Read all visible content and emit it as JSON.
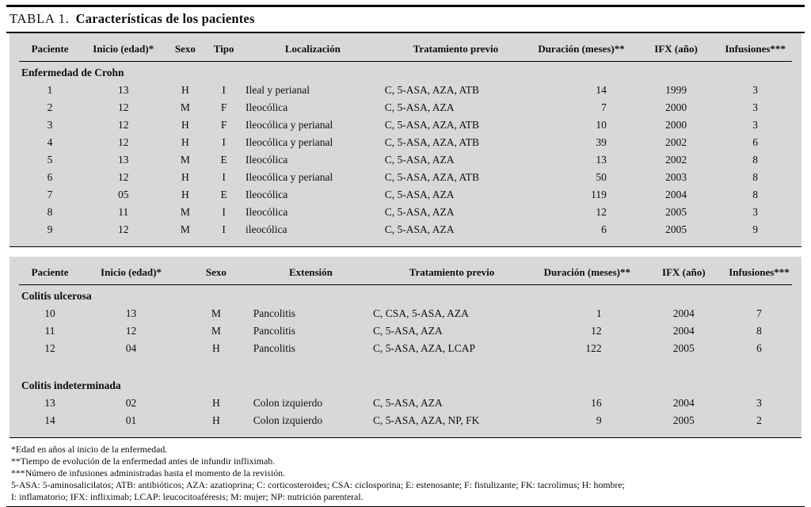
{
  "title": {
    "prefix": "TABLA 1.",
    "main": "Características de los pacientes"
  },
  "tables": [
    {
      "columns": [
        "Paciente",
        "Inicio (edad)*",
        "Sexo",
        "Tipo",
        "Localización",
        "Tratamiento previo",
        "Duración (meses)**",
        "IFX (año)",
        "Infusiones***"
      ],
      "sections": [
        {
          "label": "Enfermedad de Crohn",
          "rows": [
            [
              "1",
              "13",
              "H",
              "I",
              "Ileal y perianal",
              "C, 5-ASA, AZA, ATB",
              "14",
              "1999",
              "3"
            ],
            [
              "2",
              "12",
              "M",
              "F",
              "Ileocólica",
              "C, 5-ASA, AZA",
              "7",
              "2000",
              "3"
            ],
            [
              "3",
              "12",
              "H",
              "F",
              "Ileocólica y perianal",
              "C, 5-ASA, AZA, ATB",
              "10",
              "2000",
              "3"
            ],
            [
              "4",
              "12",
              "H",
              "I",
              "Ileocólica y perianal",
              "C, 5-ASA, AZA, ATB",
              "39",
              "2002",
              "6"
            ],
            [
              "5",
              "13",
              "M",
              "E",
              "Ileocólica",
              "C, 5-ASA, AZA",
              "13",
              "2002",
              "8"
            ],
            [
              "6",
              "12",
              "H",
              "I",
              "Ileocólica y perianal",
              "C, 5-ASA, AZA, ATB",
              "50",
              "2003",
              "8"
            ],
            [
              "7",
              "05",
              "H",
              "E",
              "Ileocólica",
              "C, 5-ASA, AZA",
              "119",
              "2004",
              "8"
            ],
            [
              "8",
              "11",
              "M",
              "I",
              "Ileocólica",
              "C, 5-ASA, AZA",
              "12",
              "2005",
              "3"
            ],
            [
              "9",
              "12",
              "M",
              "I",
              "ileocólica",
              "C, 5-ASA, AZA",
              "6",
              "2005",
              "9"
            ]
          ]
        }
      ]
    },
    {
      "columns": [
        "Paciente",
        "Inicio (edad)*",
        "Sexo",
        "Extensión",
        "Tratamiento previo",
        "Duración (meses)**",
        "IFX (año)",
        "Infusiones***"
      ],
      "sections": [
        {
          "label": "Colitis ulcerosa",
          "rows": [
            [
              "10",
              "13",
              "M",
              "Pancolitis",
              "C, CSA, 5-ASA, AZA",
              "1",
              "2004",
              "7"
            ],
            [
              "11",
              "12",
              "M",
              "Pancolitis",
              "C, 5-ASA, AZA",
              "12",
              "2004",
              "8"
            ],
            [
              "12",
              "04",
              "H",
              "Pancolitis",
              "C, 5-ASA, AZA, LCAP",
              "122",
              "2005",
              "6"
            ]
          ]
        },
        {
          "label": "Colitis indeterminada",
          "rows": [
            [
              "13",
              "02",
              "H",
              "Colon izquierdo",
              "C, 5-ASA, AZA",
              "16",
              "2004",
              "3"
            ],
            [
              "14",
              "01",
              "H",
              "Colon izquierdo",
              "C, 5-ASA, AZA, NP, FK",
              "9",
              "2005",
              "2"
            ]
          ]
        }
      ]
    }
  ],
  "footnotes": [
    "*Edad en años al inicio de la enfermedad.",
    "**Tiempo de evolución de la enfermedad antes de infundir infliximab.",
    "***Número de infusiones administradas hasta el momento de la revisión.",
    "5-ASA: 5-aminosalicilatos; ATB: antibióticos; AZA: azatioprina; C: corticosteroides; CSA: ciclosporina; E: estenosante; F: fistulizante; FK: tacrolimus; H: hombre;",
    "I: inflamatorio; IFX: infliximab; LCAP: leucocitoaféresis; M: mujer; NP: nutrición parenteral."
  ]
}
